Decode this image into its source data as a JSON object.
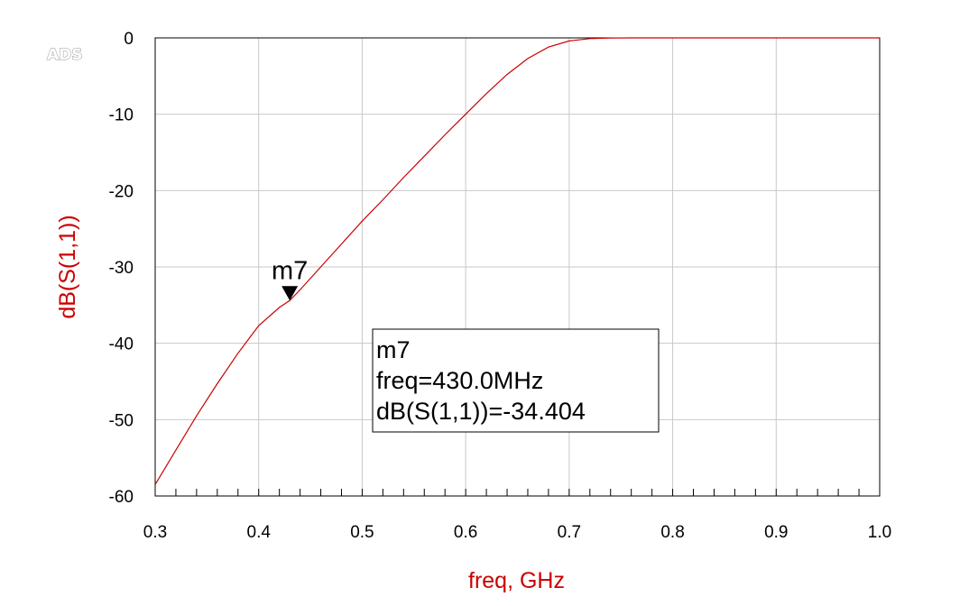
{
  "watermark": "ADS",
  "chart_data": {
    "type": "line",
    "title": "",
    "xlabel": "freq, GHz",
    "ylabel": "dB(S(1,1))",
    "xlim": [
      0.3,
      1.0
    ],
    "ylim": [
      -60,
      0
    ],
    "x_ticks": [
      "0.3",
      "0.4",
      "0.5",
      "0.6",
      "0.7",
      "0.8",
      "0.9",
      "1.0"
    ],
    "y_ticks": [
      "0",
      "-10",
      "-20",
      "-30",
      "-40",
      "-50",
      "-60"
    ],
    "grid": true,
    "colors": {
      "trace": "#cc0000",
      "axis_title": "#cc0000",
      "frame": "#000000",
      "grid": "#c8c8c8"
    },
    "series": [
      {
        "x": [
          0.3,
          0.32,
          0.34,
          0.36,
          0.38,
          0.4,
          0.42,
          0.43,
          0.44,
          0.46,
          0.48,
          0.5,
          0.52,
          0.54,
          0.56,
          0.58,
          0.6,
          0.62,
          0.64,
          0.66,
          0.68,
          0.7,
          0.72,
          0.74,
          0.76,
          0.78,
          0.8,
          0.85,
          0.9,
          0.95,
          1.0
        ],
        "y": [
          -58.5,
          -54.0,
          -49.5,
          -45.3,
          -41.3,
          -37.7,
          -35.3,
          -34.4,
          -33.0,
          -30.0,
          -27.0,
          -24.0,
          -21.2,
          -18.3,
          -15.5,
          -12.7,
          -10.0,
          -7.3,
          -4.8,
          -2.7,
          -1.2,
          -0.4,
          -0.1,
          -0.02,
          0.0,
          0.0,
          0.0,
          0.0,
          0.0,
          0.0,
          0.0
        ]
      }
    ],
    "marker": {
      "name": "m7",
      "x": 0.43,
      "y": -34.404,
      "readout": [
        "m7",
        "freq=430.0MHz",
        "dB(S(1,1))=-34.404"
      ]
    }
  }
}
